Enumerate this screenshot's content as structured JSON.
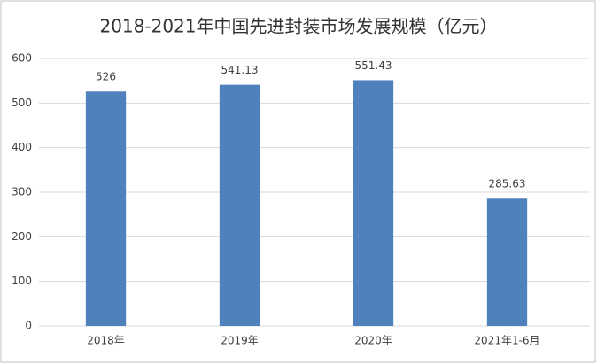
{
  "chart_data": {
    "type": "bar",
    "title": "2018-2021年中国先进封装市场发展规模（亿元）",
    "categories": [
      "2018年",
      "2019年",
      "2020年",
      "2021年1-6月"
    ],
    "values": [
      526,
      541.13,
      551.43,
      285.63
    ],
    "color": "#4f81bd",
    "ylim": [
      0,
      600
    ],
    "yticks": [
      0,
      100,
      200,
      300,
      400,
      500,
      600
    ],
    "grid": true,
    "data_labels": true
  }
}
